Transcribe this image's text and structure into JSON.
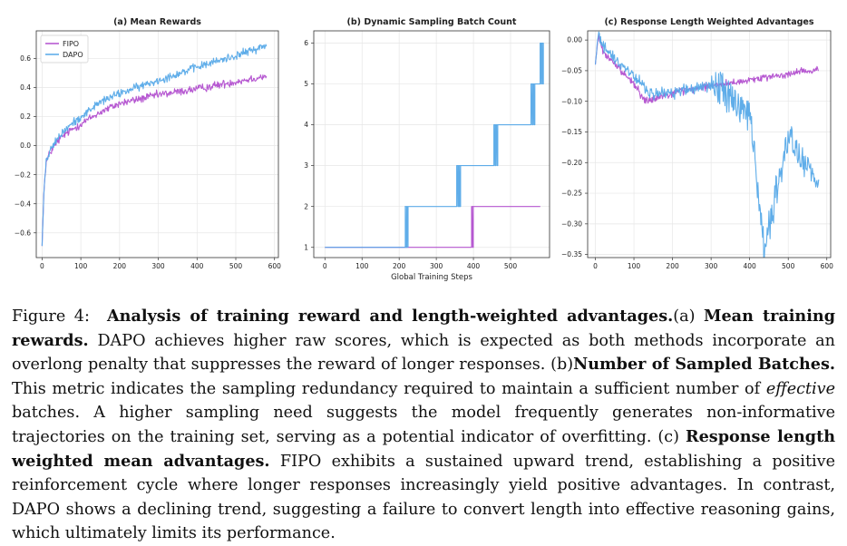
{
  "chart_data": [
    {
      "type": "line",
      "title": "(a) Mean Rewards",
      "xlabel": "",
      "ylabel": "",
      "xlim": [
        -15,
        610
      ],
      "ylim": [
        -0.77,
        0.79
      ],
      "xticks": [
        0,
        100,
        200,
        300,
        400,
        500,
        600
      ],
      "yticks": [
        -0.6,
        -0.4,
        -0.2,
        0.0,
        0.2,
        0.4,
        0.6
      ],
      "ytick_labels": [
        "−0.6",
        "−0.4",
        "−0.2",
        "0.0",
        "0.2",
        "0.4",
        "0.6"
      ],
      "grid": true,
      "legend": "top-left",
      "series": [
        {
          "name": "FIPO",
          "color": "#b24fcf",
          "x": [
            0,
            5,
            10,
            20,
            40,
            60,
            100,
            150,
            200,
            300,
            400,
            500,
            580
          ],
          "y": [
            -0.69,
            -0.3,
            -0.12,
            -0.05,
            0.03,
            0.08,
            0.15,
            0.23,
            0.29,
            0.35,
            0.39,
            0.44,
            0.48
          ]
        },
        {
          "name": "DAPO",
          "color": "#56a9e8",
          "x": [
            0,
            5,
            10,
            20,
            40,
            60,
            100,
            150,
            200,
            300,
            400,
            500,
            580
          ],
          "y": [
            -0.69,
            -0.3,
            -0.12,
            -0.04,
            0.05,
            0.11,
            0.2,
            0.3,
            0.36,
            0.45,
            0.54,
            0.62,
            0.69
          ]
        }
      ]
    },
    {
      "type": "line",
      "title": "(b) Dynamic Sampling Batch Count",
      "xlabel": "Global Training Steps",
      "ylabel": "",
      "xlim": [
        -30,
        605
      ],
      "ylim": [
        0.75,
        6.3
      ],
      "xticks": [
        0,
        100,
        200,
        300,
        400,
        500
      ],
      "yticks": [
        1,
        2,
        3,
        4,
        5,
        6
      ],
      "grid": true,
      "series": [
        {
          "name": "FIPO",
          "color": "#b24fcf",
          "x": [
            0,
            395,
            396,
            580
          ],
          "y": [
            1,
            1,
            2,
            2
          ]
        },
        {
          "name": "DAPO",
          "color": "#56a9e8",
          "x": [
            0,
            215,
            216,
            355,
            356,
            455,
            456,
            555,
            556,
            578,
            580
          ],
          "y": [
            1,
            1,
            2,
            2,
            3,
            3,
            4,
            4,
            5,
            5,
            6
          ]
        }
      ]
    },
    {
      "type": "line",
      "title": "(c) Response Length Weighted Advantages",
      "xlabel": "",
      "ylabel": "",
      "xlim": [
        -20,
        610
      ],
      "ylim": [
        -0.355,
        0.015
      ],
      "xticks": [
        0,
        100,
        200,
        300,
        400,
        500,
        600
      ],
      "yticks": [
        0.0,
        -0.05,
        -0.1,
        -0.15,
        -0.2,
        -0.25,
        -0.3,
        -0.35
      ],
      "ytick_labels": [
        "0.00",
        "−0.05",
        "−0.10",
        "−0.15",
        "−0.20",
        "−0.25",
        "−0.30",
        "−0.35"
      ],
      "grid": true,
      "series": [
        {
          "name": "FIPO",
          "color": "#b24fcf",
          "x": [
            0,
            8,
            20,
            50,
            100,
            130,
            200,
            300,
            400,
            500,
            580
          ],
          "y": [
            -0.04,
            0.01,
            -0.02,
            -0.04,
            -0.07,
            -0.1,
            -0.085,
            -0.075,
            -0.065,
            -0.055,
            -0.048
          ]
        },
        {
          "name": "DAPO",
          "color": "#56a9e8",
          "x": [
            0,
            8,
            20,
            50,
            100,
            150,
            200,
            300,
            350,
            400,
            438,
            500,
            560,
            580
          ],
          "y": [
            -0.04,
            0.01,
            -0.01,
            -0.03,
            -0.06,
            -0.09,
            -0.085,
            -0.075,
            -0.09,
            -0.12,
            -0.34,
            -0.16,
            -0.22,
            -0.24
          ]
        }
      ]
    }
  ],
  "caption": {
    "label": "Figure 4:",
    "bold1": "Analysis of training reward and length-weighted advantages.",
    "part_a_prefix": "(a)",
    "bold2": "Mean training rewards.",
    "text1": "DAPO achieves higher raw scores, which is expected as both methods incorporate an overlong penalty that suppresses the reward of longer responses. (b)",
    "bold3": "Number of Sampled Batches.",
    "text2": "This metric indicates the sampling redundancy required to maintain a sufficient number of",
    "italic1": "effective",
    "text3": "batches. A higher sampling need suggests the model frequently generates non-informative trajectories on the training set, serving as a potential indicator of overfitting. (c)",
    "bold4": "Response length weighted mean advantages.",
    "text4": "FIPO exhibits a sustained upward trend, establishing a positive reinforcement cycle where longer responses increasingly yield positive advantages. In contrast, DAPO shows a declining trend, suggesting a failure to convert length into effective reasoning gains, which ultimately limits its performance."
  }
}
